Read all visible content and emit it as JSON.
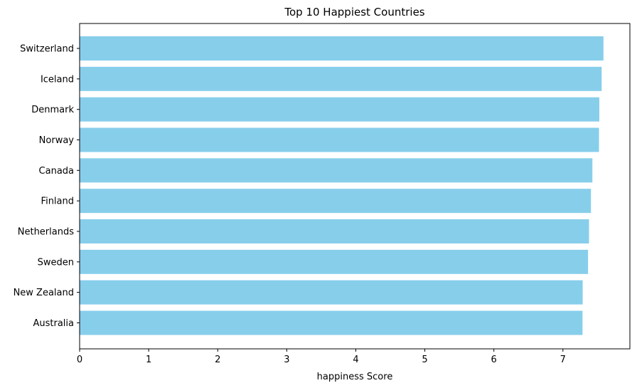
{
  "chart_data": {
    "type": "bar",
    "orientation": "horizontal",
    "title": "Top 10 Happiest Countries",
    "xlabel": "happiness Score",
    "ylabel": "",
    "categories": [
      "Switzerland",
      "Iceland",
      "Denmark",
      "Norway",
      "Canada",
      "Finland",
      "Netherlands",
      "Sweden",
      "New Zealand",
      "Australia"
    ],
    "values": [
      7.587,
      7.561,
      7.527,
      7.522,
      7.427,
      7.406,
      7.378,
      7.364,
      7.286,
      7.284
    ],
    "xlim": [
      0,
      7.97
    ],
    "xticks": [
      0,
      1,
      2,
      3,
      4,
      5,
      6,
      7
    ],
    "grid": false,
    "bar_color": "#87ceeb"
  }
}
